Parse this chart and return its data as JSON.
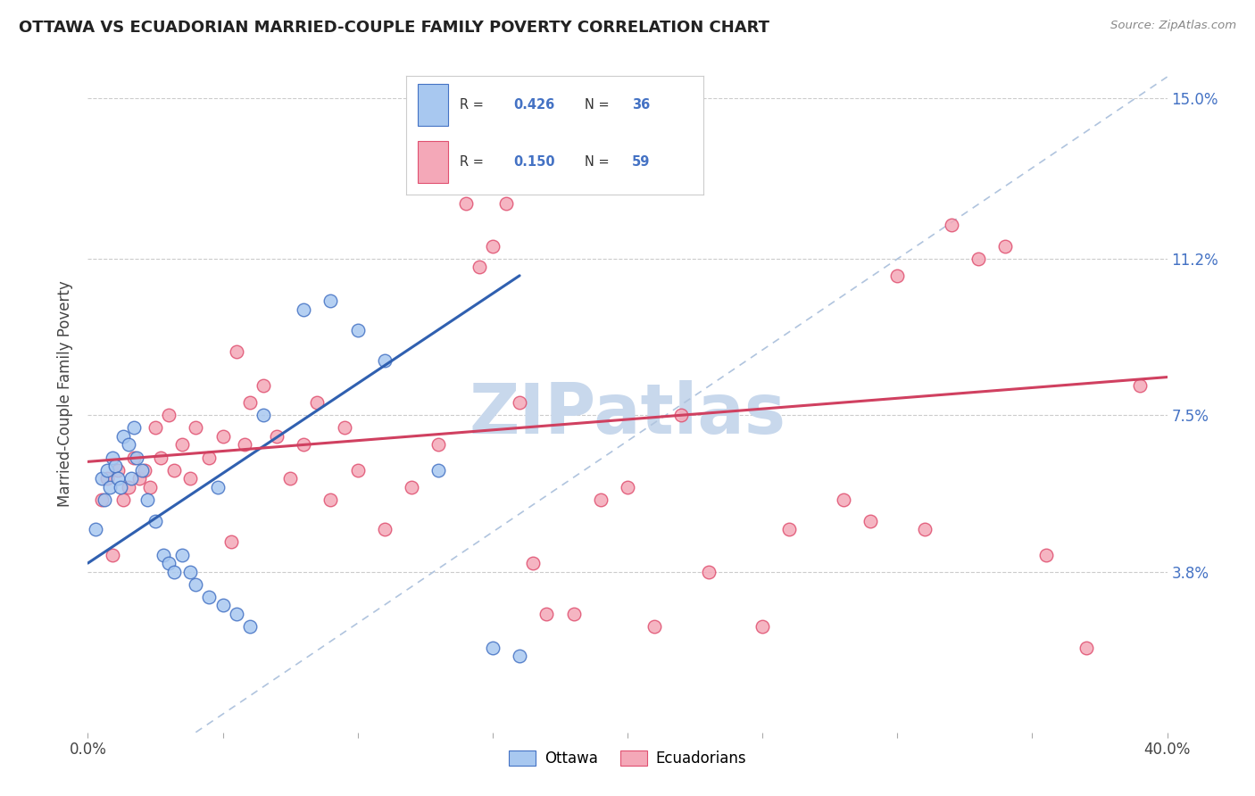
{
  "title": "OTTAWA VS ECUADORIAN MARRIED-COUPLE FAMILY POVERTY CORRELATION CHART",
  "source": "Source: ZipAtlas.com",
  "ylabel": "Married-Couple Family Poverty",
  "xlim": [
    0.0,
    0.4
  ],
  "ylim": [
    0.0,
    0.16
  ],
  "xtick_positions": [
    0.0,
    0.05,
    0.1,
    0.15,
    0.2,
    0.25,
    0.3,
    0.35,
    0.4
  ],
  "xticklabels": [
    "0.0%",
    "",
    "",
    "",
    "",
    "",
    "",
    "",
    "40.0%"
  ],
  "ytick_positions": [
    0.038,
    0.075,
    0.112,
    0.15
  ],
  "ytick_labels": [
    "3.8%",
    "7.5%",
    "11.2%",
    "15.0%"
  ],
  "ottawa_R": 0.426,
  "ottawa_N": 36,
  "ecuadorian_R": 0.15,
  "ecuadorian_N": 59,
  "ottawa_color": "#A8C8F0",
  "ecuadorian_color": "#F4A8B8",
  "ottawa_edge_color": "#4472C4",
  "ecuadorian_edge_color": "#E05070",
  "ottawa_line_color": "#3060B0",
  "ecuadorian_line_color": "#D04060",
  "diagonal_color": "#B0C4DE",
  "background_color": "#FFFFFF",
  "watermark_text": "ZIPatlas",
  "watermark_color": "#C8D8EC",
  "legend_text_color": "#333333",
  "legend_value_color": "#4472C4",
  "ottawa_x": [
    0.003,
    0.005,
    0.006,
    0.007,
    0.008,
    0.009,
    0.01,
    0.011,
    0.012,
    0.013,
    0.015,
    0.016,
    0.017,
    0.018,
    0.02,
    0.022,
    0.025,
    0.028,
    0.03,
    0.032,
    0.035,
    0.038,
    0.04,
    0.045,
    0.048,
    0.05,
    0.055,
    0.06,
    0.065,
    0.08,
    0.09,
    0.1,
    0.11,
    0.13,
    0.15,
    0.16
  ],
  "ottawa_y": [
    0.048,
    0.06,
    0.055,
    0.062,
    0.058,
    0.065,
    0.063,
    0.06,
    0.058,
    0.07,
    0.068,
    0.06,
    0.072,
    0.065,
    0.062,
    0.055,
    0.05,
    0.042,
    0.04,
    0.038,
    0.042,
    0.038,
    0.035,
    0.032,
    0.058,
    0.03,
    0.028,
    0.025,
    0.075,
    0.1,
    0.102,
    0.095,
    0.088,
    0.062,
    0.02,
    0.018
  ],
  "ecuadorian_x": [
    0.005,
    0.007,
    0.009,
    0.011,
    0.013,
    0.015,
    0.017,
    0.019,
    0.021,
    0.023,
    0.025,
    0.027,
    0.03,
    0.032,
    0.035,
    0.038,
    0.04,
    0.045,
    0.05,
    0.053,
    0.055,
    0.058,
    0.06,
    0.065,
    0.07,
    0.075,
    0.08,
    0.085,
    0.09,
    0.095,
    0.1,
    0.11,
    0.12,
    0.13,
    0.14,
    0.145,
    0.15,
    0.155,
    0.16,
    0.165,
    0.17,
    0.18,
    0.19,
    0.2,
    0.21,
    0.22,
    0.23,
    0.25,
    0.26,
    0.28,
    0.29,
    0.3,
    0.31,
    0.32,
    0.33,
    0.34,
    0.355,
    0.37,
    0.39
  ],
  "ecuadorian_y": [
    0.055,
    0.06,
    0.042,
    0.062,
    0.055,
    0.058,
    0.065,
    0.06,
    0.062,
    0.058,
    0.072,
    0.065,
    0.075,
    0.062,
    0.068,
    0.06,
    0.072,
    0.065,
    0.07,
    0.045,
    0.09,
    0.068,
    0.078,
    0.082,
    0.07,
    0.06,
    0.068,
    0.078,
    0.055,
    0.072,
    0.062,
    0.048,
    0.058,
    0.068,
    0.125,
    0.11,
    0.115,
    0.125,
    0.078,
    0.04,
    0.028,
    0.028,
    0.055,
    0.058,
    0.025,
    0.075,
    0.038,
    0.025,
    0.048,
    0.055,
    0.05,
    0.108,
    0.048,
    0.12,
    0.112,
    0.115,
    0.042,
    0.02,
    0.082
  ]
}
